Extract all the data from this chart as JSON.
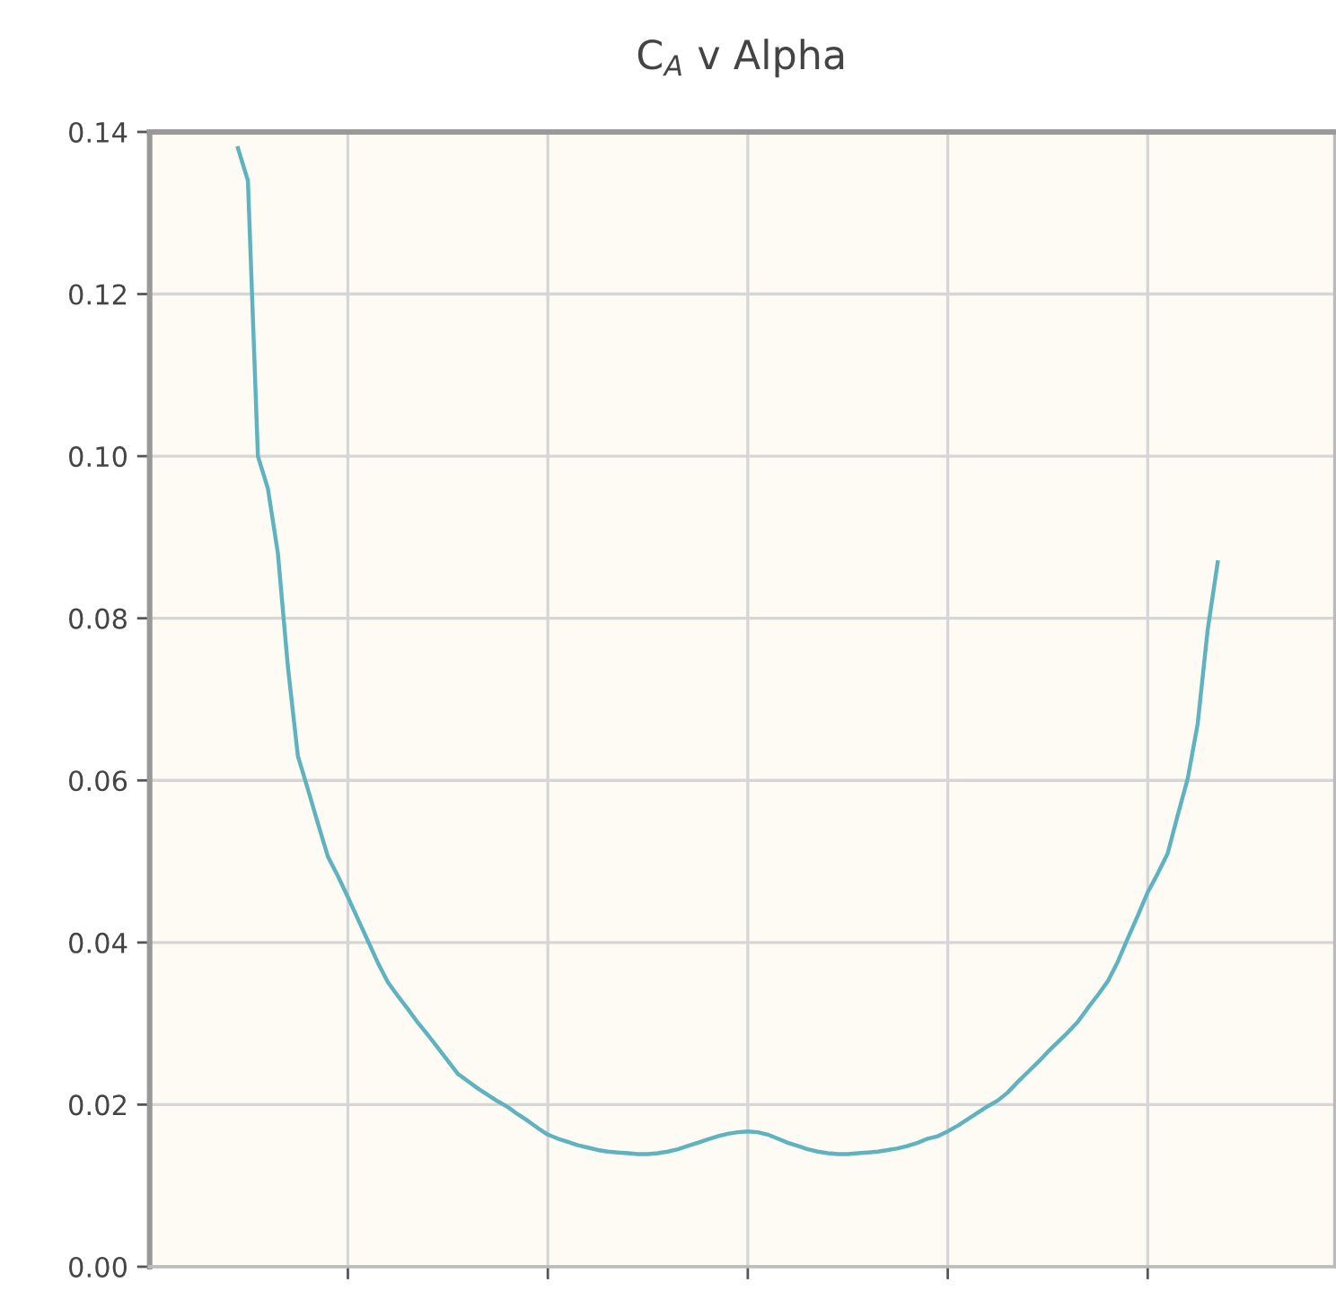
{
  "chart_data": {
    "type": "line",
    "title": "C$_{A}$ v Alpha",
    "categories": [
      null,
      null,
      null,
      null,
      null,
      null,
      null,
      null,
      null,
      null,
      null,
      null,
      null,
      null,
      null,
      null,
      null,
      null,
      null,
      null,
      null,
      null,
      null,
      null,
      null,
      null,
      null,
      null,
      null,
      null,
      null,
      null,
      null,
      null,
      null,
      null,
      null,
      null,
      null,
      null,
      null,
      null,
      null,
      null,
      null,
      null,
      null,
      null,
      null,
      null,
      null,
      null,
      null,
      null,
      null,
      null,
      null,
      null,
      null,
      null,
      null,
      null,
      null,
      null,
      null,
      null,
      null,
      null,
      null,
      null,
      null,
      null,
      null,
      null,
      null,
      null,
      null,
      null,
      null,
      null,
      null,
      null,
      null,
      null,
      null,
      null,
      null,
      null,
      null,
      null,
      null,
      null,
      null,
      null,
      null,
      null,
      null,
      null,
      null
    ],
    "series": [
      {
        "color": "#5fb3c0",
        "values": [
          0.138,
          0.134,
          0.1,
          0.096,
          0.088,
          0.074,
          0.063,
          0.0589,
          0.0547,
          0.0506,
          0.0482,
          0.0456,
          0.0429,
          0.0402,
          0.0375,
          0.0351,
          0.0334,
          0.0318,
          0.0301,
          0.0286,
          0.027,
          0.0254,
          0.0238,
          0.0229,
          0.022,
          0.0212,
          0.0204,
          0.0197,
          0.0188,
          0.018,
          0.0171,
          0.0163,
          0.0158,
          0.0154,
          0.015,
          0.0147,
          0.0144,
          0.0142,
          0.0141,
          0.014,
          0.0139,
          0.0139,
          0.014,
          0.0142,
          0.0145,
          0.0149,
          0.0153,
          0.0157,
          0.0161,
          0.0164,
          0.0166,
          0.0167,
          0.0166,
          0.0163,
          0.0158,
          0.0153,
          0.0149,
          0.0145,
          0.0142,
          0.014,
          0.0139,
          0.0139,
          0.014,
          0.0141,
          0.0142,
          0.0144,
          0.0146,
          0.0149,
          0.0153,
          0.0158,
          0.0161,
          0.0167,
          0.0174,
          0.0182,
          0.019,
          0.0198,
          0.0205,
          0.0215,
          0.0228,
          0.024,
          0.0252,
          0.0265,
          0.0277,
          0.0289,
          0.0302,
          0.0319,
          0.0335,
          0.0352,
          0.0376,
          0.0405,
          0.0433,
          0.0462,
          0.0485,
          0.051,
          0.0557,
          0.0602,
          0.067,
          0.0786,
          0.0869
        ]
      }
    ],
    "ylim": [
      0,
      0.14
    ],
    "yticks": [
      {
        "value": 0,
        "label": "0.00"
      },
      {
        "value": 0.02,
        "label": "0.02"
      },
      {
        "value": 0.04,
        "label": "0.04"
      },
      {
        "value": 0.06,
        "label": "0.06"
      },
      {
        "value": 0.08,
        "label": "0.08"
      },
      {
        "value": 0.1,
        "label": "0.10"
      },
      {
        "value": 0.12,
        "label": "0.12"
      },
      {
        "value": 0.14,
        "label": "0.14"
      }
    ],
    "grid": true,
    "tick_labels": "y",
    "marker": "none",
    "line_style": "solid"
  }
}
